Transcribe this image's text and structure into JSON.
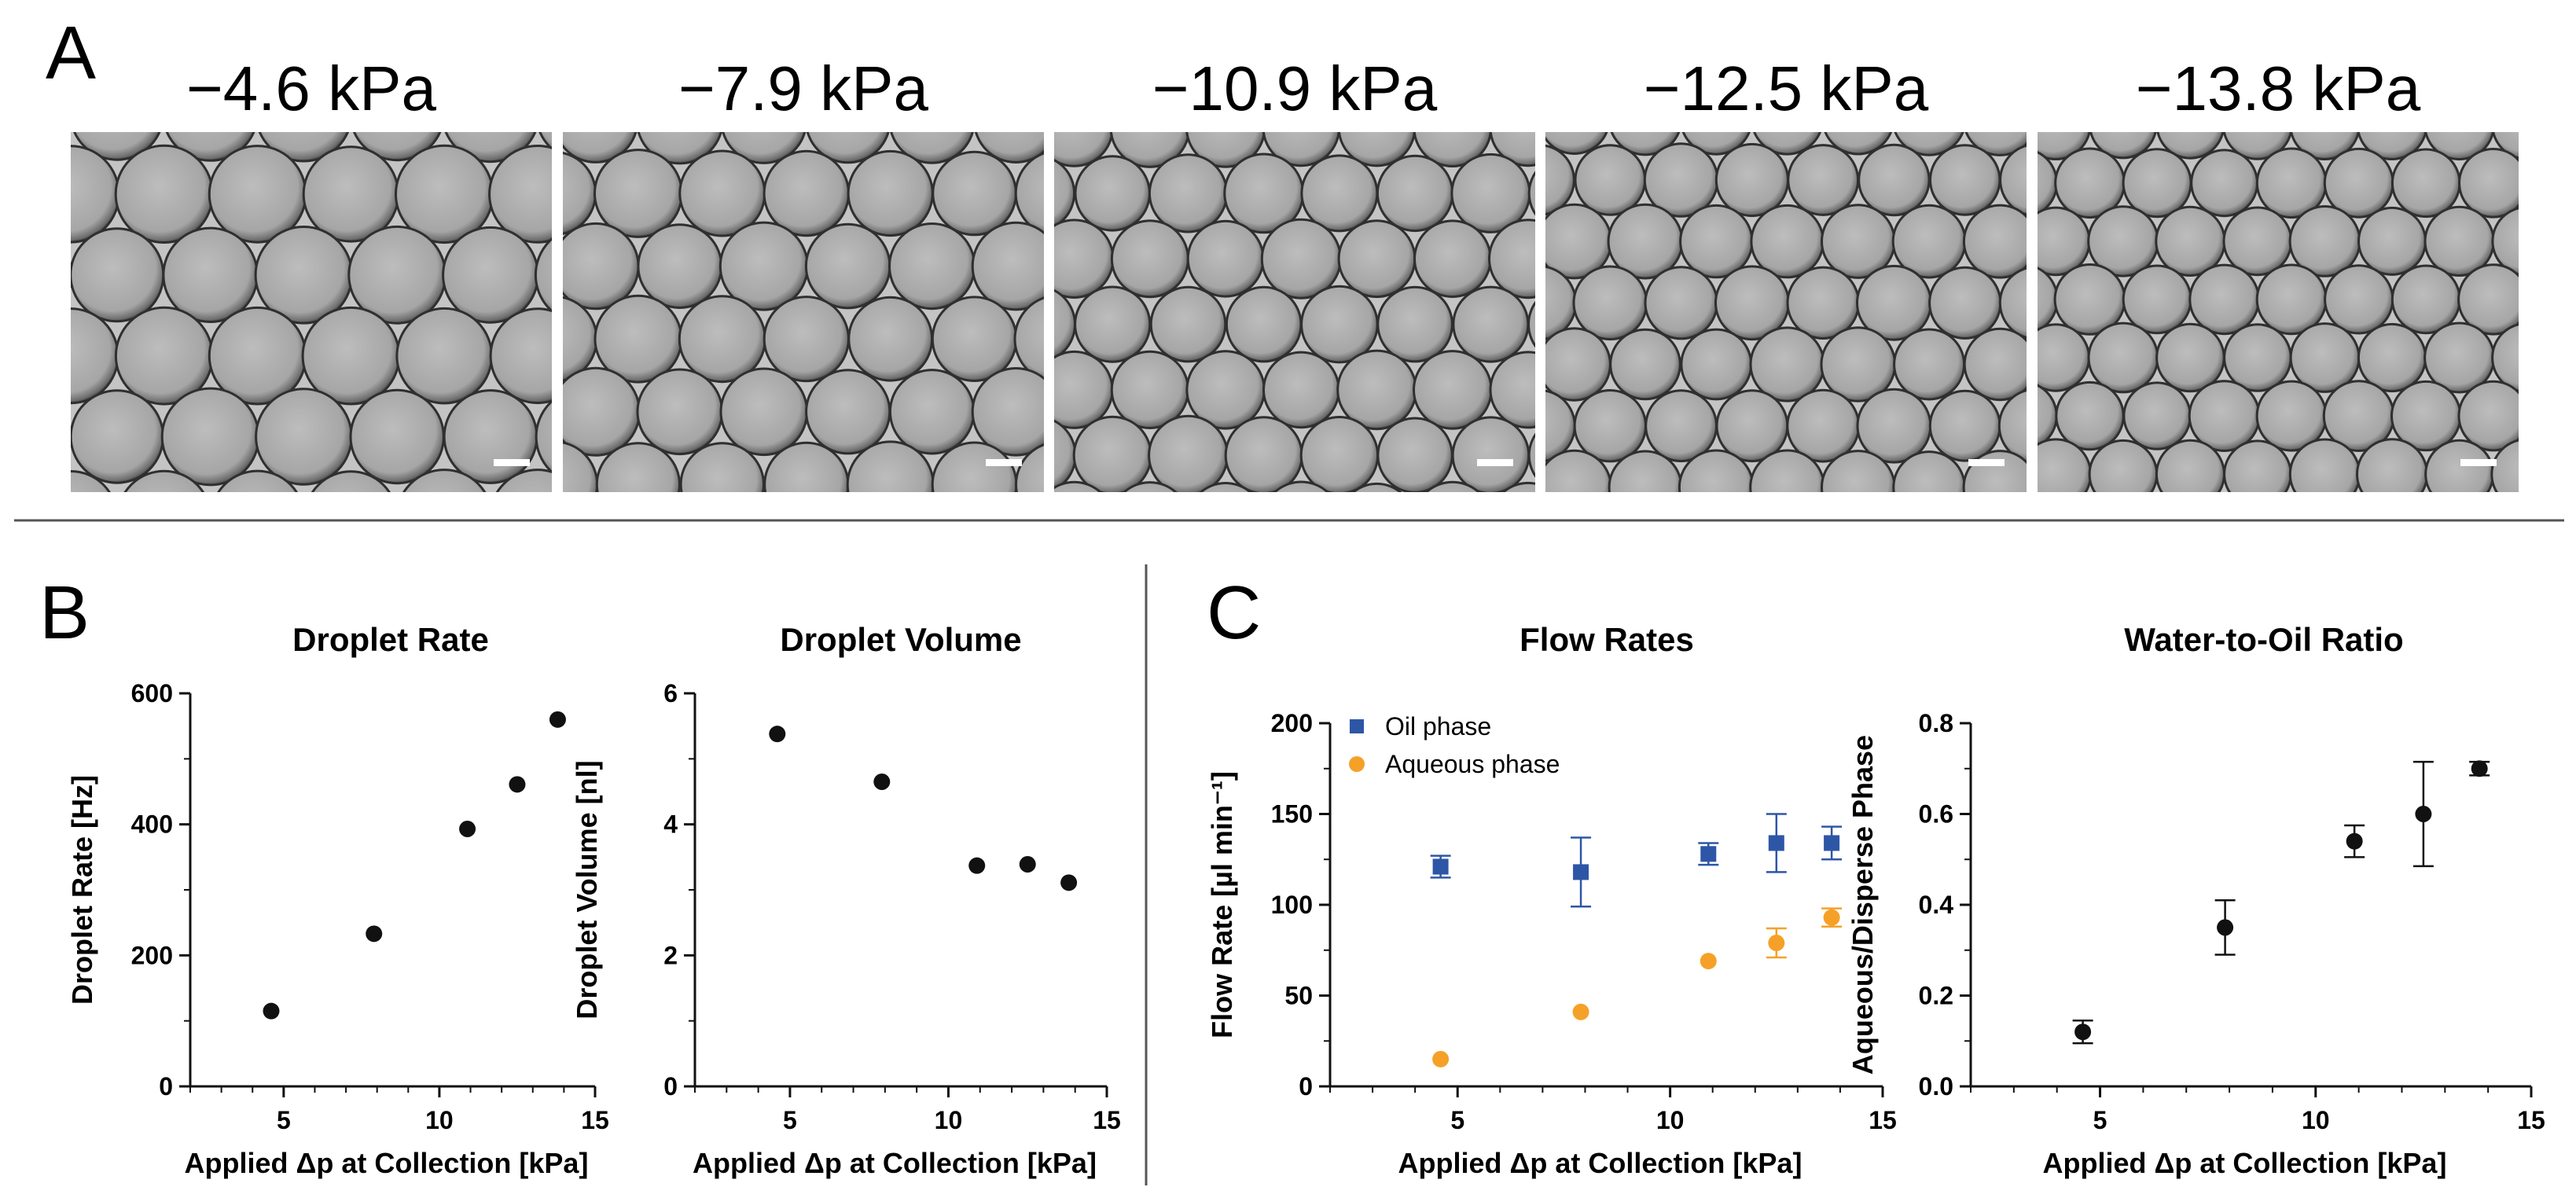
{
  "panel_letters": {
    "a": "A",
    "b": "B",
    "c": "C"
  },
  "micrographs": {
    "labels": [
      "−4.6 kPa",
      "−7.9 kPa",
      "−10.9 kPa",
      "−12.5 kPa",
      "−13.8 kPa"
    ],
    "relative_droplet_size": [
      1.0,
      0.9,
      0.81,
      0.76,
      0.72
    ]
  },
  "colors": {
    "oil": "#2e56a6",
    "aqueous": "#f5a128",
    "black": "#111111",
    "photo_bg": "#c4c4c4"
  },
  "chart_data": [
    {
      "id": "droplet-rate",
      "type": "scatter",
      "title": "Droplet Rate",
      "xlabel": "Applied Δp at Collection [kPa]",
      "ylabel": "Droplet Rate [Hz]",
      "xlim": [
        2,
        15
      ],
      "ylim": [
        0,
        600
      ],
      "xticks": [
        5,
        10,
        15
      ],
      "yticks": [
        0,
        200,
        400,
        600
      ],
      "series": [
        {
          "name": "Droplet Rate",
          "x": [
            4.6,
            7.9,
            10.9,
            12.5,
            13.8
          ],
          "y": [
            115,
            233,
            393,
            461,
            560
          ],
          "marker": "circle",
          "color": "#111111"
        }
      ]
    },
    {
      "id": "droplet-volume",
      "type": "scatter",
      "title": "Droplet Volume",
      "xlabel": "Applied Δp at Collection [kPa]",
      "ylabel": "Droplet Volume [nl]",
      "xlim": [
        2,
        15
      ],
      "ylim": [
        0,
        6
      ],
      "xticks": [
        5,
        10,
        15
      ],
      "yticks": [
        0,
        2,
        4,
        6
      ],
      "series": [
        {
          "name": "Droplet Volume",
          "x": [
            4.6,
            7.9,
            10.9,
            12.5,
            13.8
          ],
          "y": [
            5.38,
            4.65,
            3.37,
            3.39,
            3.11
          ],
          "marker": "circle",
          "color": "#111111"
        }
      ]
    },
    {
      "id": "flow-rates",
      "type": "scatter",
      "title": "Flow Rates",
      "xlabel": "Applied Δp at Collection [kPa]",
      "ylabel": "Flow Rate [µl min⁻¹]",
      "xlim": [
        2,
        15
      ],
      "ylim": [
        0,
        200
      ],
      "xticks": [
        5,
        10,
        15
      ],
      "yticks": [
        0,
        50,
        100,
        150,
        200
      ],
      "legend": "top-left",
      "series": [
        {
          "name": "Oil phase",
          "x": [
            4.6,
            7.9,
            10.9,
            12.5,
            13.8
          ],
          "y": [
            121,
            118,
            128,
            134,
            134
          ],
          "err": [
            6,
            19,
            6,
            16,
            9
          ],
          "marker": "square",
          "color": "#2e56a6"
        },
        {
          "name": "Aqueous phase",
          "x": [
            4.6,
            7.9,
            10.9,
            12.5,
            13.8
          ],
          "y": [
            15,
            41,
            69,
            79,
            93
          ],
          "err": [
            0,
            0,
            0,
            8,
            5
          ],
          "marker": "circle",
          "color": "#f5a128"
        }
      ]
    },
    {
      "id": "water-oil-ratio",
      "type": "scatter",
      "title": "Water-to-Oil Ratio",
      "xlabel": "Applied Δp at Collection [kPa]",
      "ylabel": "Aqueous/Disperse Phase",
      "xlim": [
        2,
        15
      ],
      "ylim": [
        0,
        0.8
      ],
      "xticks": [
        5,
        10,
        15
      ],
      "yticks": [
        0.0,
        0.2,
        0.4,
        0.6,
        0.8
      ],
      "ydecimals": 1,
      "series": [
        {
          "name": "Water-to-Oil Ratio",
          "x": [
            4.6,
            7.9,
            10.9,
            12.5,
            13.8
          ],
          "y": [
            0.12,
            0.35,
            0.54,
            0.6,
            0.7
          ],
          "err": [
            0.025,
            0.06,
            0.035,
            0.115,
            0.015
          ],
          "marker": "circle",
          "color": "#111111"
        }
      ]
    }
  ]
}
